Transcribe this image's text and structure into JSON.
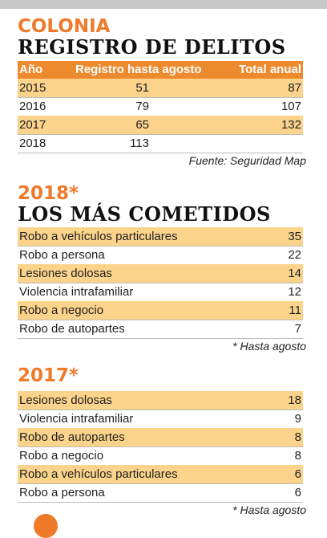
{
  "header": {
    "kicker": "COLONIA",
    "title": "REGISTRO DE DELITOS"
  },
  "table": {
    "columns": [
      "Año",
      "Registro hasta agosto",
      "Total anual"
    ],
    "rows": [
      [
        2015,
        51,
        87
      ],
      [
        2016,
        79,
        107
      ],
      [
        2017,
        65,
        132
      ],
      [
        2018,
        113
      ]
    ]
  },
  "source": "Fuente: Seguridad Map",
  "sections": [
    {
      "year": "2018*",
      "title": "LOS MÁS COMETIDOS",
      "rows": [
        [
          "Robo a vehículos particulares",
          35
        ],
        [
          "Robo a persona",
          22
        ],
        [
          "Lesiones dolosas",
          14
        ],
        [
          "Violencia intrafamiliar",
          12
        ],
        [
          "Robo a negocio",
          11
        ],
        [
          "Robo de autopartes",
          7
        ]
      ],
      "note": "* Hasta agosto"
    },
    {
      "year": "2017*",
      "rows": [
        [
          "Lesiones dolosas",
          18
        ],
        [
          "Violencia intrafamiliar",
          9
        ],
        [
          "Robo de autopartes",
          8
        ],
        [
          "Robo a negocio",
          8
        ],
        [
          "Robo a vehículos particulares",
          6
        ],
        [
          "Robo a persona",
          6
        ]
      ],
      "note": "* Hasta agosto"
    }
  ]
}
